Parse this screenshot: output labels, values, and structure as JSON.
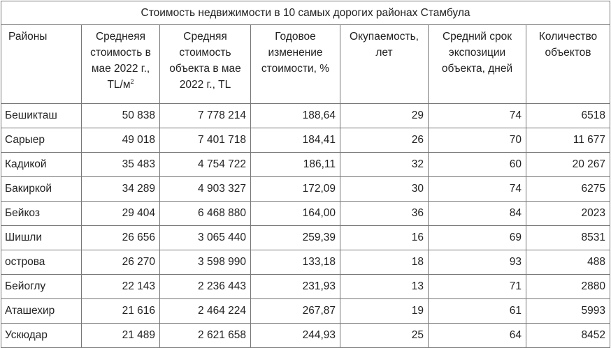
{
  "table": {
    "caption": "Стоимость недвижимости в 10 самых дорогих районах Стамбула",
    "headers": {
      "district": "Районы",
      "avg_price_m2": "Среднеяя стоимость в мае 2022 г., TL/м",
      "avg_price_m2_sup": "2",
      "avg_price_obj": "Cредняя стоимость объекта в мае 2022 г., TL",
      "yearly_change": "Годовое изменение стоимости, %",
      "payback": "Окупаемость, лет",
      "exposure": "Средний срок экспозиции объекта, дней",
      "count": "Количество объектов"
    },
    "rows": [
      {
        "district": "Бешикташ",
        "avg_price_m2": "50 838",
        "avg_price_obj": "7 778 214",
        "yearly_change": "188,64",
        "payback": "29",
        "exposure": "74",
        "count": "6518"
      },
      {
        "district": "Сарыер",
        "avg_price_m2": "49 018",
        "avg_price_obj": "7 401 718",
        "yearly_change": "184,41",
        "payback": "26",
        "exposure": "70",
        "count": "11 677"
      },
      {
        "district": "Кадикой",
        "avg_price_m2": "35 483",
        "avg_price_obj": "4 754 722",
        "yearly_change": "186,11",
        "payback": "32",
        "exposure": "60",
        "count": "20 267"
      },
      {
        "district": "Бакиркой",
        "avg_price_m2": "34 289",
        "avg_price_obj": "4 903 327",
        "yearly_change": "172,09",
        "payback": "30",
        "exposure": "74",
        "count": "6275"
      },
      {
        "district": "Бейкоз",
        "avg_price_m2": "29 404",
        "avg_price_obj": "6 468 880",
        "yearly_change": "164,00",
        "payback": "36",
        "exposure": "84",
        "count": "2023"
      },
      {
        "district": "Шишли",
        "avg_price_m2": "26 656",
        "avg_price_obj": "3 065 440",
        "yearly_change": "259,39",
        "payback": "16",
        "exposure": "69",
        "count": "8531"
      },
      {
        "district": "острова",
        "avg_price_m2": "26 270",
        "avg_price_obj": "3 598 990",
        "yearly_change": "133,18",
        "payback": "18",
        "exposure": "93",
        "count": "488"
      },
      {
        "district": "Бейоглу",
        "avg_price_m2": "22 143",
        "avg_price_obj": "2 236 443",
        "yearly_change": "231,93",
        "payback": "13",
        "exposure": "71",
        "count": "2880"
      },
      {
        "district": "Аташехир",
        "avg_price_m2": "21 616",
        "avg_price_obj": "2 464 224",
        "yearly_change": "267,87",
        "payback": "19",
        "exposure": "61",
        "count": "5993"
      },
      {
        "district": "Ускюдар",
        "avg_price_m2": "21 489",
        "avg_price_obj": "2 621 658",
        "yearly_change": "244,93",
        "payback": "25",
        "exposure": "64",
        "count": "8452"
      }
    ]
  }
}
